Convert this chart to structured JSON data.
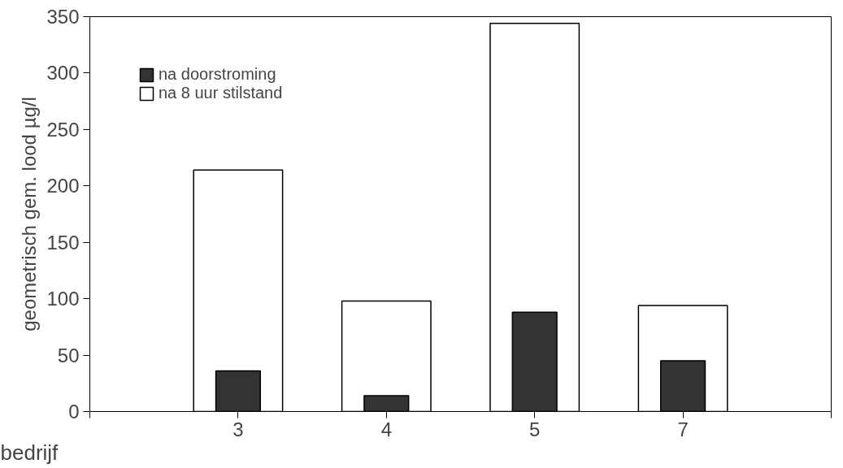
{
  "chart_data": {
    "type": "bar",
    "xlabel": "bedrijf",
    "ylabel": "geometrisch gem. lood µg/l",
    "categories": [
      "3",
      "4",
      "5",
      "7"
    ],
    "series": [
      {
        "name": "na doorstroming",
        "color": "#333333",
        "values": [
          36,
          14,
          88,
          45
        ]
      },
      {
        "name": "na 8 uur stilstand",
        "color": "#ffffff",
        "values": [
          214,
          98,
          344,
          94
        ]
      }
    ],
    "ylim": [
      0,
      350
    ],
    "yticks": [
      0,
      50,
      100,
      150,
      200,
      250,
      300,
      350
    ],
    "grid": false,
    "legend": "top left"
  }
}
